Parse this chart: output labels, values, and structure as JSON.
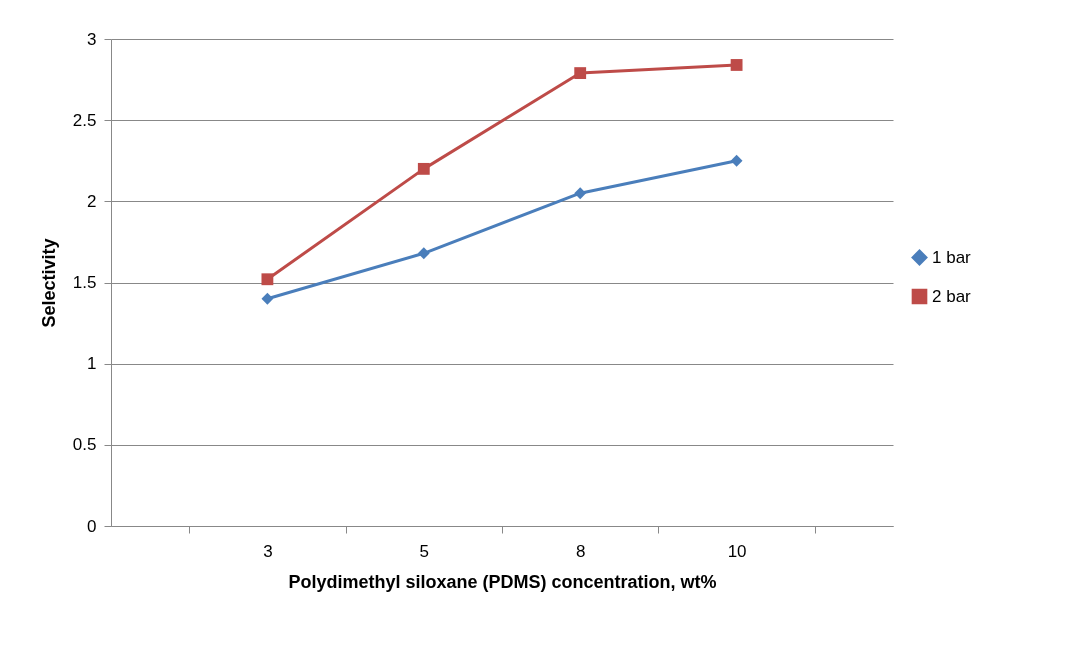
{
  "chart_data": {
    "type": "line",
    "xlabel": "Polydimethyl siloxane (PDMS) concentration, wt%",
    "ylabel": "Selectivity",
    "categories": [
      "3",
      "5",
      "8",
      "10"
    ],
    "series": [
      {
        "name": "1 bar",
        "color": "#4a7ebb",
        "marker": "diamond",
        "values": [
          1.4,
          1.68,
          2.05,
          2.25
        ]
      },
      {
        "name": "2 bar",
        "color": "#be4b48",
        "marker": "square",
        "values": [
          1.52,
          2.2,
          2.79,
          2.84
        ]
      }
    ],
    "ylim": [
      0,
      3
    ],
    "yticks": [
      0,
      0.5,
      1,
      1.5,
      2,
      2.5,
      3
    ],
    "grid": "y",
    "legend": "right",
    "line_style": "solid"
  }
}
